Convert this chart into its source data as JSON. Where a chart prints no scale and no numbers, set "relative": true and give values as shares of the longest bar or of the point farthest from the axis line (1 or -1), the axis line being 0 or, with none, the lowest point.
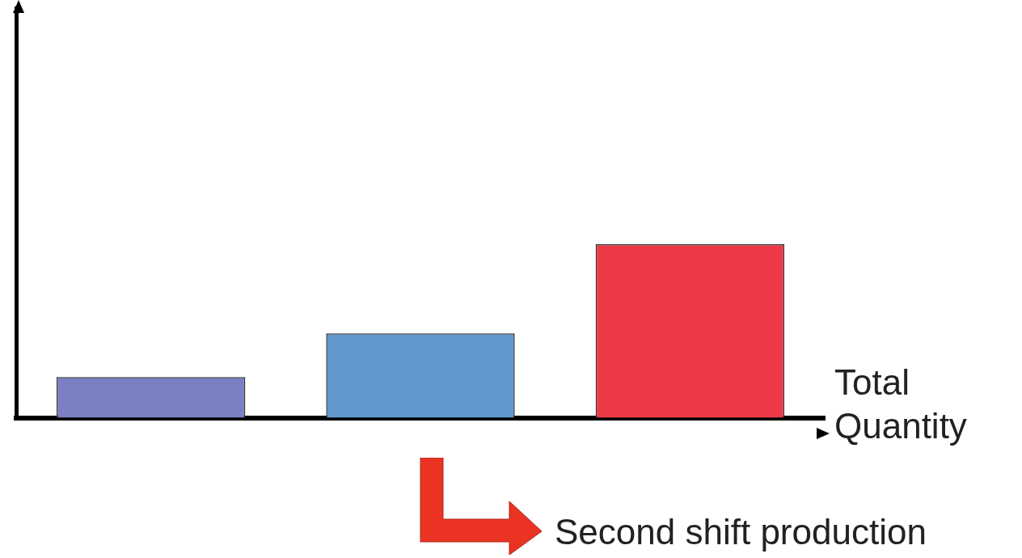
{
  "chart_data": {
    "type": "bar",
    "relative": true,
    "grid": false,
    "legend": false,
    "xlabel": "Total Quantity",
    "categories": [
      null,
      null,
      null
    ],
    "values": [
      0.234,
      0.486,
      1
    ],
    "colors": [
      "#7b7fc4",
      "#6199cf",
      "#ee3a48"
    ],
    "annotations": [
      "Second shift production"
    ]
  }
}
